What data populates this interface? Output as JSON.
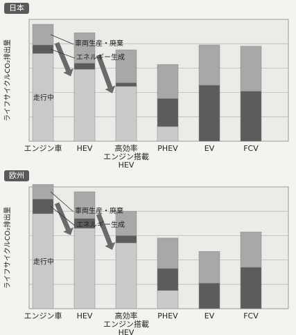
{
  "chart_data": [
    {
      "type": "bar",
      "stacked": true,
      "title": "日本",
      "ylabel": "ライフサイクルCO₂排出量",
      "categories": [
        [
          "エンジン車"
        ],
        [
          "HEV"
        ],
        [
          "高効率",
          "エンジン搭載",
          "HEV"
        ],
        [
          "PHEV"
        ],
        [
          "EV"
        ],
        [
          "FCV"
        ]
      ],
      "ylim": [
        0,
        100
      ],
      "grid": true,
      "series": [
        {
          "name": "走行中",
          "color": "#c9c9c9",
          "values": [
            72,
            59,
            45,
            12,
            0,
            0
          ]
        },
        {
          "name": "エネルギー生成",
          "color": "#5c5c5c",
          "values": [
            7,
            5,
            3,
            23,
            46,
            41
          ]
        },
        {
          "name": "車両生産・廃棄",
          "color": "#a8a8a8",
          "values": [
            17,
            25,
            27,
            28,
            33,
            37
          ]
        }
      ],
      "annotations": [
        "車両生産・廃棄",
        "エネルギー生成",
        "走行中"
      ]
    },
    {
      "type": "bar",
      "stacked": true,
      "title": "欧州",
      "ylabel": "ライフサイクルCO₂排出量",
      "categories": [
        [
          "エンジン車"
        ],
        [
          "HEV"
        ],
        [
          "高効率",
          "エンジン搭載",
          "HEV"
        ],
        [
          "PHEV"
        ],
        [
          "EV"
        ],
        [
          "FCV"
        ]
      ],
      "ylim": [
        0,
        100
      ],
      "grid": true,
      "series": [
        {
          "name": "走行中",
          "color": "#c9c9c9",
          "values": [
            78,
            66,
            54,
            15,
            0,
            0
          ]
        },
        {
          "name": "エネルギー生成",
          "color": "#5c5c5c",
          "values": [
            12,
            8,
            6,
            18,
            21,
            34
          ]
        },
        {
          "name": "車両生産・廃棄",
          "color": "#a8a8a8",
          "values": [
            12,
            22,
            20,
            25,
            26,
            29
          ]
        }
      ],
      "annotations": [
        "車両生産・廃棄",
        "エネルギー生成",
        "走行中"
      ]
    }
  ]
}
